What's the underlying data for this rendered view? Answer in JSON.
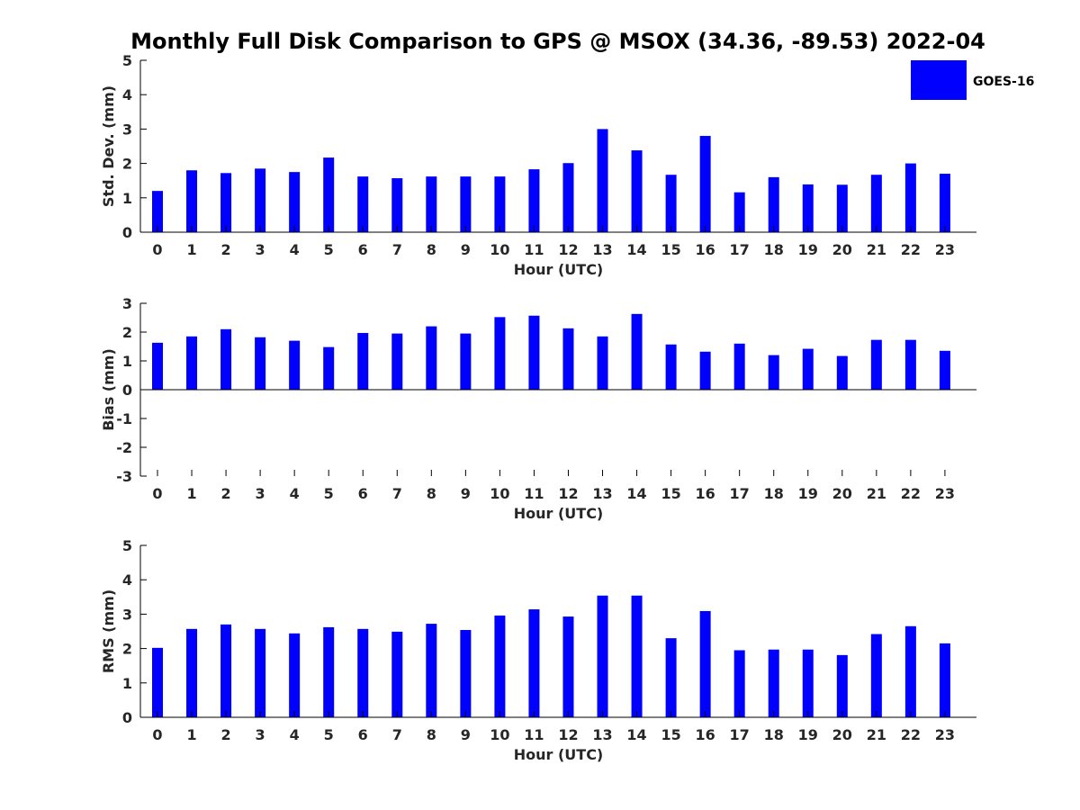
{
  "title": "Monthly Full Disk Comparison to GPS @ MSOX (34.36, -89.53) 2022-04",
  "legend": {
    "label": "GOES-16",
    "color": "#0000ff",
    "placement": "top-right"
  },
  "chart_data": [
    {
      "type": "bar",
      "categories": [
        "0",
        "1",
        "2",
        "3",
        "4",
        "5",
        "6",
        "7",
        "8",
        "9",
        "10",
        "11",
        "12",
        "13",
        "14",
        "15",
        "16",
        "17",
        "18",
        "19",
        "20",
        "21",
        "22",
        "23"
      ],
      "series": [
        {
          "name": "GOES-16",
          "values": [
            1.2,
            1.8,
            1.72,
            1.85,
            1.75,
            2.17,
            1.62,
            1.57,
            1.62,
            1.62,
            1.62,
            1.83,
            2.01,
            3.0,
            2.38,
            1.67,
            2.8,
            1.16,
            1.6,
            1.39,
            1.38,
            1.67,
            2.0,
            1.7
          ],
          "color": "#0000ff"
        }
      ],
      "xlabel": "Hour (UTC)",
      "ylabel": "Std. Dev. (mm)",
      "ylim": [
        0,
        5
      ],
      "yticks": [
        "0",
        "1",
        "2",
        "3",
        "4",
        "5"
      ],
      "grid": false
    },
    {
      "type": "bar",
      "categories": [
        "0",
        "1",
        "2",
        "3",
        "4",
        "5",
        "6",
        "7",
        "8",
        "9",
        "10",
        "11",
        "12",
        "13",
        "14",
        "15",
        "16",
        "17",
        "18",
        "19",
        "20",
        "21",
        "22",
        "23"
      ],
      "series": [
        {
          "name": "GOES-16",
          "values": [
            1.63,
            1.85,
            2.1,
            1.82,
            1.7,
            1.48,
            1.97,
            1.95,
            2.2,
            1.95,
            2.52,
            2.57,
            2.13,
            1.85,
            2.63,
            1.57,
            1.32,
            1.6,
            1.2,
            1.42,
            1.17,
            1.73,
            1.73,
            1.35
          ],
          "color": "#0000ff"
        }
      ],
      "xlabel": "Hour (UTC)",
      "ylabel": "Bias (mm)",
      "ylim": [
        -3,
        3
      ],
      "yticks": [
        "-3",
        "-2",
        "-1",
        "0",
        "1",
        "2",
        "3"
      ],
      "grid": false
    },
    {
      "type": "bar",
      "categories": [
        "0",
        "1",
        "2",
        "3",
        "4",
        "5",
        "6",
        "7",
        "8",
        "9",
        "10",
        "11",
        "12",
        "13",
        "14",
        "15",
        "16",
        "17",
        "18",
        "19",
        "20",
        "21",
        "22",
        "23"
      ],
      "series": [
        {
          "name": "GOES-16",
          "values": [
            2.02,
            2.57,
            2.7,
            2.57,
            2.44,
            2.62,
            2.57,
            2.49,
            2.72,
            2.54,
            2.96,
            3.14,
            2.93,
            3.54,
            3.54,
            2.3,
            3.09,
            1.95,
            1.97,
            1.97,
            1.81,
            2.42,
            2.65,
            2.15
          ],
          "color": "#0000ff"
        }
      ],
      "xlabel": "Hour (UTC)",
      "ylabel": "RMS (mm)",
      "ylim": [
        0,
        5
      ],
      "yticks": [
        "0",
        "1",
        "2",
        "3",
        "4",
        "5"
      ],
      "grid": false
    }
  ]
}
